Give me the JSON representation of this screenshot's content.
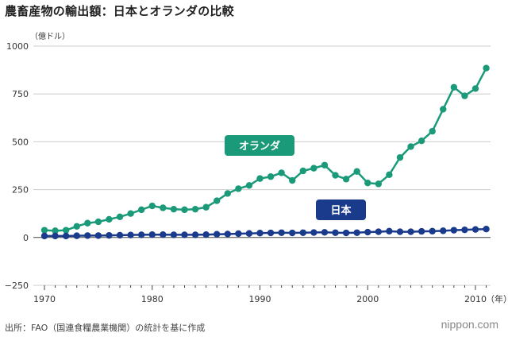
{
  "title": "農畜産物の輸出額：日本とオランダの比較",
  "source": "出所：FAO（国連食糧農業機関）の統計を基に作成",
  "logo": "nippon.com",
  "colors": {
    "netherlands": "#1a9a78",
    "japan": "#1a3a8c",
    "grid": "#cccccc",
    "axis": "#333333"
  },
  "chart_data": {
    "type": "line",
    "title": "農畜産物の輸出額：日本とオランダの比較",
    "ylabel": "（億ドル）",
    "xlabel": "（年）",
    "ylim": [
      -250,
      1000
    ],
    "xlim": [
      1969,
      2011
    ],
    "yticks": [
      1000,
      750,
      500,
      250,
      0,
      -250
    ],
    "ytick_labels": [
      "1000",
      "750",
      "500",
      "250",
      "0",
      "−250"
    ],
    "xticks": [
      1970,
      1980,
      1990,
      2000,
      2010
    ],
    "xtick_labels": [
      "1970",
      "1980",
      "1990",
      "2000",
      "2010"
    ],
    "x": [
      1970,
      1971,
      1972,
      1973,
      1974,
      1975,
      1976,
      1977,
      1978,
      1979,
      1980,
      1981,
      1982,
      1983,
      1984,
      1985,
      1986,
      1987,
      1988,
      1989,
      1990,
      1991,
      1992,
      1993,
      1994,
      1995,
      1996,
      1997,
      1998,
      1999,
      2000,
      2001,
      2002,
      2003,
      2004,
      2005,
      2006,
      2007,
      2008,
      2009,
      2010,
      2011
    ],
    "series": [
      {
        "name": "オランダ",
        "color": "#1a9a78",
        "values": [
          38,
          35,
          38,
          58,
          75,
          82,
          95,
          108,
          125,
          145,
          165,
          155,
          148,
          145,
          148,
          158,
          192,
          230,
          255,
          272,
          308,
          318,
          338,
          298,
          348,
          362,
          378,
          325,
          305,
          345,
          285,
          280,
          328,
          418,
          475,
          505,
          555,
          670,
          785,
          740,
          778,
          885
        ]
      },
      {
        "name": "日本",
        "color": "#1a3a8c",
        "values": [
          8,
          8,
          8,
          9,
          10,
          10,
          11,
          12,
          13,
          14,
          15,
          15,
          14,
          14,
          14,
          15,
          17,
          18,
          20,
          21,
          23,
          24,
          25,
          24,
          25,
          26,
          27,
          25,
          24,
          25,
          28,
          30,
          33,
          30,
          30,
          32,
          33,
          35,
          38,
          40,
          42,
          44
        ]
      }
    ]
  }
}
